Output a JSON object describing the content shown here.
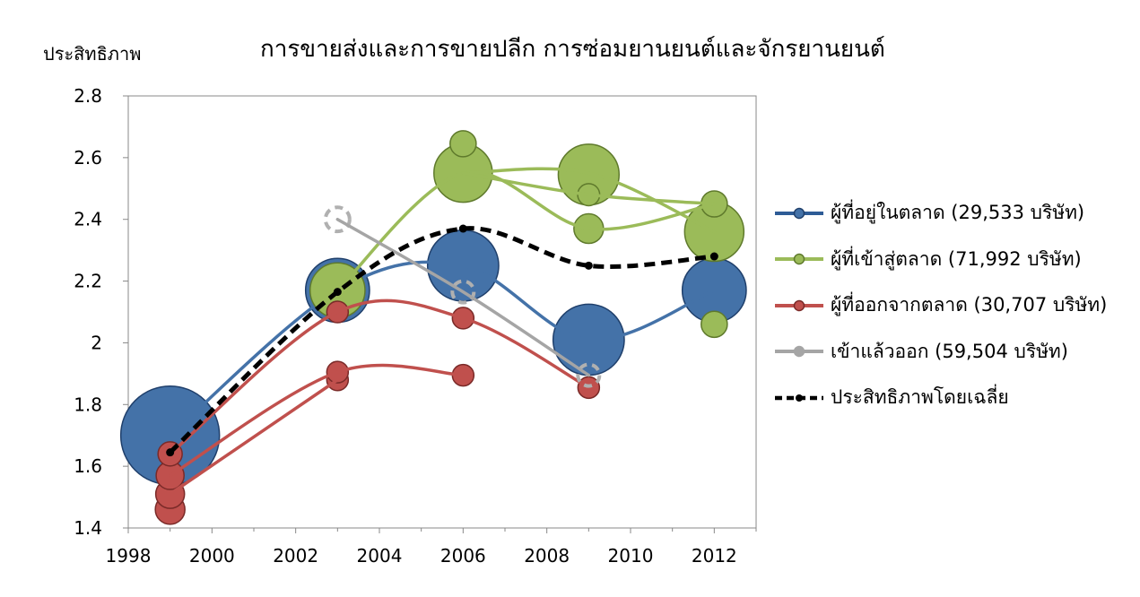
{
  "chart_data": {
    "type": "bubble",
    "title": "การขายส่งและการขายปลีก การซ่อมยานยนต์และจักรยานยนต์",
    "ylabel": "ประสิทธิภาพ",
    "xlabel": "",
    "xlim": [
      1998,
      2013
    ],
    "ylim": [
      1.4,
      2.8
    ],
    "x_ticks": [
      "1998",
      "2000",
      "2002",
      "2004",
      "2006",
      "2008",
      "2010",
      "2012"
    ],
    "y_ticks": [
      "1.4",
      "1.6",
      "1.8",
      "2",
      "2.2",
      "2.4",
      "2.6",
      "2.8"
    ],
    "grid": false,
    "legend_position": "right",
    "series": [
      {
        "name": "ผู้ที่อยู่ในตลาด (29,533 บริษัท)",
        "color": "#4472a8",
        "lines": [
          [
            [
              1999,
              1.7
            ],
            [
              2003,
              2.17
            ],
            [
              2006,
              2.25
            ],
            [
              2009,
              2.01
            ],
            [
              2012,
              2.17
            ]
          ]
        ],
        "bubbles": [
          {
            "x": 1999,
            "y": 1.7,
            "size": 1.0
          },
          {
            "x": 2003,
            "y": 2.17,
            "size": 0.42
          },
          {
            "x": 2006,
            "y": 2.25,
            "size": 0.52
          },
          {
            "x": 2009,
            "y": 2.01,
            "size": 0.52
          },
          {
            "x": 2012,
            "y": 2.17,
            "size": 0.42
          }
        ]
      },
      {
        "name": "ผู้ที่เข้าสู่ตลาด (71,992 บริษัท)",
        "color": "#9bbb59",
        "lines": [
          [
            [
              2003,
              2.17
            ],
            [
              2006,
              2.55
            ],
            [
              2009,
              2.37
            ],
            [
              2012,
              2.45
            ]
          ],
          [
            [
              2006,
              2.55
            ],
            [
              2009,
              2.55
            ],
            [
              2012,
              2.36
            ]
          ],
          [
            [
              2006,
              2.55
            ],
            [
              2009,
              2.48
            ],
            [
              2012,
              2.45
            ]
          ]
        ],
        "bubbles": [
          {
            "x": 2003,
            "y": 2.17,
            "size": 0.31
          },
          {
            "x": 2006,
            "y": 2.55,
            "size": 0.35
          },
          {
            "x": 2006,
            "y": 2.645,
            "size": 0.07
          },
          {
            "x": 2009,
            "y": 2.545,
            "size": 0.38
          },
          {
            "x": 2009,
            "y": 2.48,
            "size": 0.05
          },
          {
            "x": 2009,
            "y": 2.37,
            "size": 0.09
          },
          {
            "x": 2012,
            "y": 2.36,
            "size": 0.36
          },
          {
            "x": 2012,
            "y": 2.45,
            "size": 0.07
          },
          {
            "x": 2012,
            "y": 2.06,
            "size": 0.07
          }
        ]
      },
      {
        "name": "ผู้ที่ออกจากตลาด (30,707 บริษัท)",
        "color": "#c0504d",
        "lines": [
          [
            [
              1999,
              1.64
            ],
            [
              2003,
              2.1
            ],
            [
              2006,
              2.08
            ],
            [
              2009,
              1.855
            ]
          ],
          [
            [
              1999,
              1.57
            ],
            [
              2003,
              1.905
            ],
            [
              2006,
              1.895
            ]
          ],
          [
            [
              1999,
              1.51
            ],
            [
              2003,
              1.88
            ]
          ]
        ],
        "bubbles": [
          {
            "x": 1999,
            "y": 1.46,
            "size": 0.09
          },
          {
            "x": 1999,
            "y": 1.51,
            "size": 0.085
          },
          {
            "x": 1999,
            "y": 1.57,
            "size": 0.08
          },
          {
            "x": 1999,
            "y": 1.64,
            "size": 0.06
          },
          {
            "x": 2003,
            "y": 2.1,
            "size": 0.04
          },
          {
            "x": 2003,
            "y": 1.905,
            "size": 0.025
          },
          {
            "x": 2003,
            "y": 1.88,
            "size": 0.03
          },
          {
            "x": 2006,
            "y": 2.08,
            "size": 0.03
          },
          {
            "x": 2006,
            "y": 1.895,
            "size": 0.02
          },
          {
            "x": 2009,
            "y": 1.855,
            "size": 0.025
          }
        ]
      },
      {
        "name": "เข้าแล้วออก (59,504 บริษัท)",
        "color": "#a5a5a5",
        "lines": [
          [
            [
              2003,
              2.4
            ],
            [
              2006,
              2.165
            ],
            [
              2009,
              1.895
            ]
          ]
        ],
        "bubbles": [
          {
            "x": 2003,
            "y": 2.4,
            "size": 0.06
          },
          {
            "x": 2006,
            "y": 2.165,
            "size": 0.045
          },
          {
            "x": 2009,
            "y": 1.895,
            "size": 0.03
          }
        ]
      },
      {
        "name": "ประสิทธิภาพโดยเฉลี่ย",
        "color": "#000000",
        "lines": [
          [
            [
              1999,
              1.645
            ],
            [
              2003,
              2.165
            ],
            [
              2006,
              2.37
            ],
            [
              2009,
              2.25
            ],
            [
              2012,
              2.28
            ]
          ]
        ],
        "bubbles": []
      }
    ]
  }
}
